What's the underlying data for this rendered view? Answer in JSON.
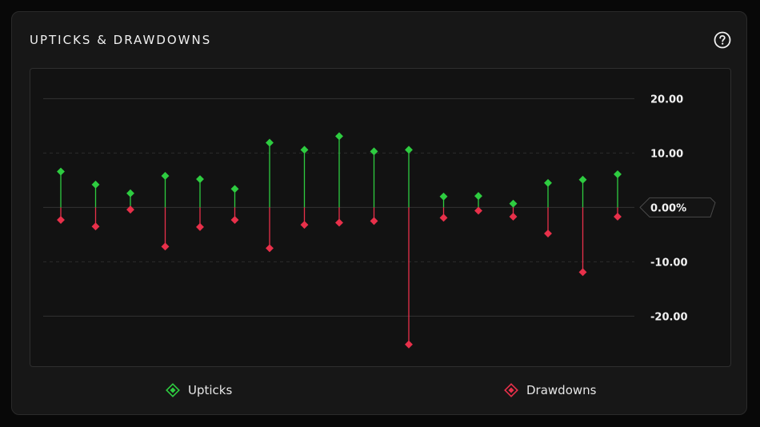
{
  "title": "UPTICKS & DRAWDOWNS",
  "help_icon": "question-circle-icon",
  "chart_data": {
    "type": "lollipop",
    "y_ticks": [
      20,
      10,
      0,
      -10,
      -20
    ],
    "y_tick_labels": [
      "20.00",
      "10.00",
      "0.00%",
      "-10.00",
      "-20.00"
    ],
    "ylim": [
      -29.5,
      25.5
    ],
    "series": [
      {
        "name": "Upticks",
        "color": "#2ecc40",
        "values": [
          6.6,
          4.2,
          2.6,
          5.8,
          5.2,
          3.4,
          11.9,
          10.6,
          13.1,
          10.3,
          10.6,
          2.0,
          2.1,
          0.7,
          4.5,
          5.1,
          6.1
        ]
      },
      {
        "name": "Drawdowns",
        "color": "#e8304a",
        "values": [
          -2.3,
          -3.5,
          -0.4,
          -7.2,
          -3.6,
          -2.3,
          -7.5,
          -3.2,
          -2.8,
          -2.5,
          -25.2,
          -1.9,
          -0.6,
          -1.7,
          -4.8,
          -11.9,
          -1.7
        ]
      }
    ]
  },
  "legend": {
    "upticks_label": "Upticks",
    "drawdowns_label": "Drawdowns"
  },
  "colors": {
    "up": "#2ecc40",
    "down": "#e8304a",
    "grid": "#333333",
    "background": "#171717"
  }
}
